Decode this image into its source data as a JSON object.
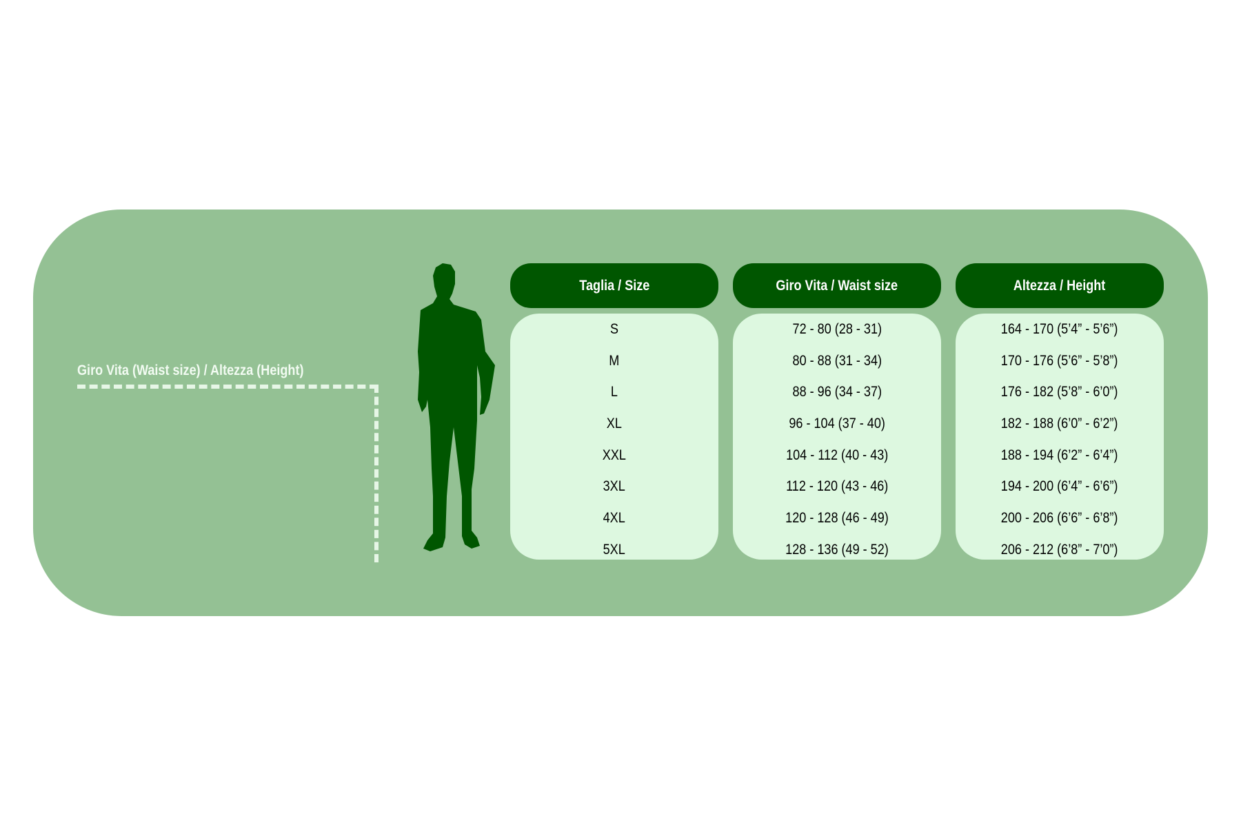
{
  "measure_label": "Giro Vita  (Waist size) / Altezza (Height)",
  "colors": {
    "panel": "#94c194",
    "header": "#005600",
    "body": "#ddf8e0",
    "silhouette": "#005600"
  },
  "icons": {
    "figure": "man-silhouette-icon"
  },
  "table": {
    "columns": [
      {
        "header": "Taglia / Size",
        "values": [
          "S",
          "M",
          "L",
          "XL",
          "XXL",
          "3XL",
          "4XL",
          "5XL"
        ]
      },
      {
        "header": "Giro Vita / Waist size",
        "values": [
          "72 - 80 (28 - 31)",
          "80 - 88 (31 - 34)",
          "88 - 96 (34 - 37)",
          "96 - 104 (37 - 40)",
          "104 - 112 (40 - 43)",
          "112 - 120 (43 - 46)",
          "120 - 128 (46 - 49)",
          "128 - 136 (49 - 52)"
        ]
      },
      {
        "header": "Altezza / Height",
        "values": [
          "164 - 170 (5’4” - 5’6”)",
          "170 - 176 (5’6” - 5’8”)",
          "176 - 182 (5’8” - 6’0”)",
          "182 - 188 (6’0” - 6’2”)",
          "188 - 194 (6’2” - 6’4”)",
          "194 - 200 (6’4” - 6’6”)",
          "200 - 206 (6’6” - 6’8”)",
          "206 - 212 (6’8” - 7’0”)"
        ]
      }
    ]
  }
}
